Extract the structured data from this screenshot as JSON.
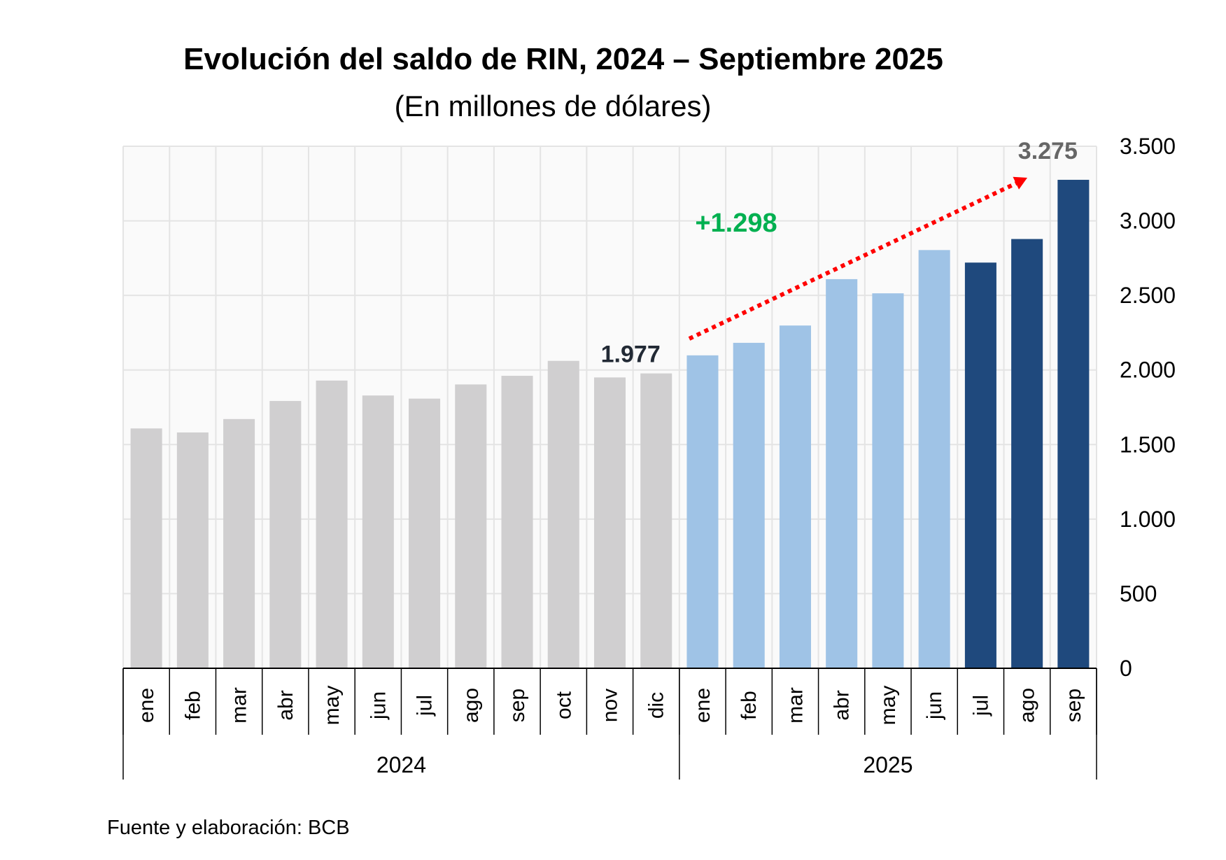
{
  "chart_data": {
    "type": "bar",
    "title": "Evolución del saldo de RIN, 2024 – Septiembre 2025",
    "subtitle": "(En millones de dólares)",
    "source": "Fuente y elaboración: BCB",
    "categories": [
      "ene",
      "feb",
      "mar",
      "abr",
      "may",
      "jun",
      "jul",
      "ago",
      "sep",
      "oct",
      "nov",
      "dic",
      "ene",
      "feb",
      "mar",
      "abr",
      "may",
      "jun",
      "jul",
      "ago",
      "sep"
    ],
    "groups": [
      {
        "label": "2024",
        "count": 12
      },
      {
        "label": "2025",
        "count": 9
      }
    ],
    "values": [
      1608,
      1581,
      1671,
      1792,
      1929,
      1829,
      1808,
      1903,
      1961,
      2061,
      1950,
      1977,
      2098,
      2182,
      2298,
      2609,
      2514,
      2804,
      2720,
      2878,
      3275
    ],
    "bar_colors": [
      "#d0cfd0",
      "#d0cfd0",
      "#d0cfd0",
      "#d0cfd0",
      "#d0cfd0",
      "#d0cfd0",
      "#d0cfd0",
      "#d0cfd0",
      "#d0cfd0",
      "#d0cfd0",
      "#d0cfd0",
      "#d0cfd0",
      "#9fc3e6",
      "#9fc3e6",
      "#9fc3e6",
      "#9fc3e6",
      "#9fc3e6",
      "#9fc3e6",
      "#1f497d",
      "#1f497d",
      "#1f497d"
    ],
    "ylim": [
      0,
      3500
    ],
    "yticks": [
      0,
      500,
      1000,
      1500,
      2000,
      2500,
      3000,
      3500
    ],
    "ytick_labels": [
      "0",
      "500",
      "1.000",
      "1.500",
      "2.000",
      "2.500",
      "3.000",
      "3.500"
    ],
    "y_axis_side": "right",
    "grid": true,
    "annotations": {
      "start_label": {
        "text": "1.977",
        "color": "#222a35"
      },
      "end_label": {
        "text": "3.275",
        "color": "#666666"
      },
      "change_label": {
        "text": "+1.298",
        "color": "#00b050"
      },
      "arrow": {
        "from_category_index": 11,
        "to_category_index": 20,
        "color": "#ff0000",
        "style": "dotted"
      }
    }
  }
}
